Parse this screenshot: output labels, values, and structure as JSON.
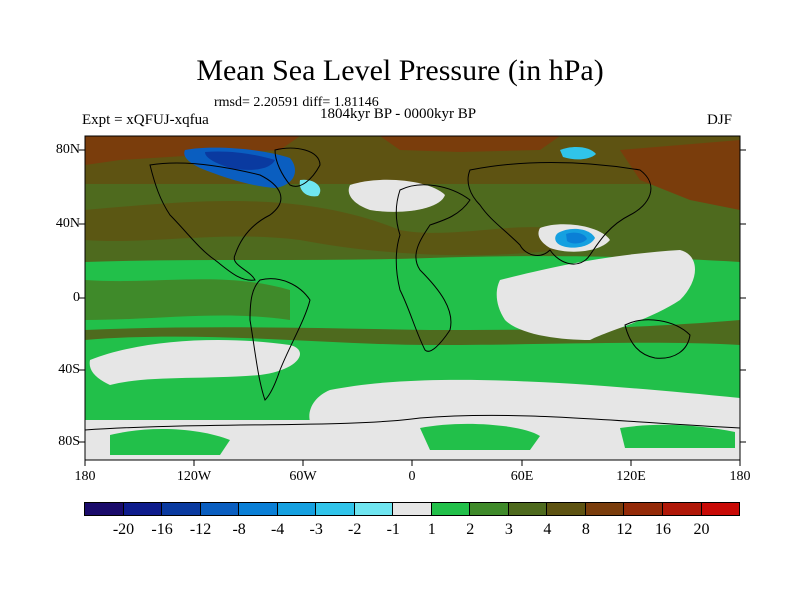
{
  "title": "Mean Sea Level Pressure (in hPa)",
  "stats_line": "rmsd= 2.20591 diff= 1.81146",
  "period": "1804kyr BP - 0000kyr BP",
  "experiment": "Expt = xQFUJ-xqfua",
  "season": "DJF",
  "lat_labels": [
    "80N",
    "40N",
    "0",
    "40S",
    "80S"
  ],
  "lon_labels": [
    "180",
    "120W",
    "60W",
    "0",
    "60E",
    "120E",
    "180"
  ],
  "colorbar": {
    "colors": [
      "#1a0b6b",
      "#0e1c8c",
      "#0a3aa0",
      "#0a5ec0",
      "#0a7fd6",
      "#15a0e0",
      "#30c4ea",
      "#6fe5f0",
      "#e6e6e6",
      "#22c04a",
      "#3f8a2a",
      "#4e6a1e",
      "#5e5312",
      "#7a3d0c",
      "#942a08",
      "#b01808",
      "#c80a06"
    ],
    "labels": [
      "-20",
      "-16",
      "-12",
      "-8",
      "-4",
      "-3",
      "-2",
      "-1",
      "1",
      "2",
      "3",
      "4",
      "8",
      "12",
      "16",
      "20"
    ]
  }
}
